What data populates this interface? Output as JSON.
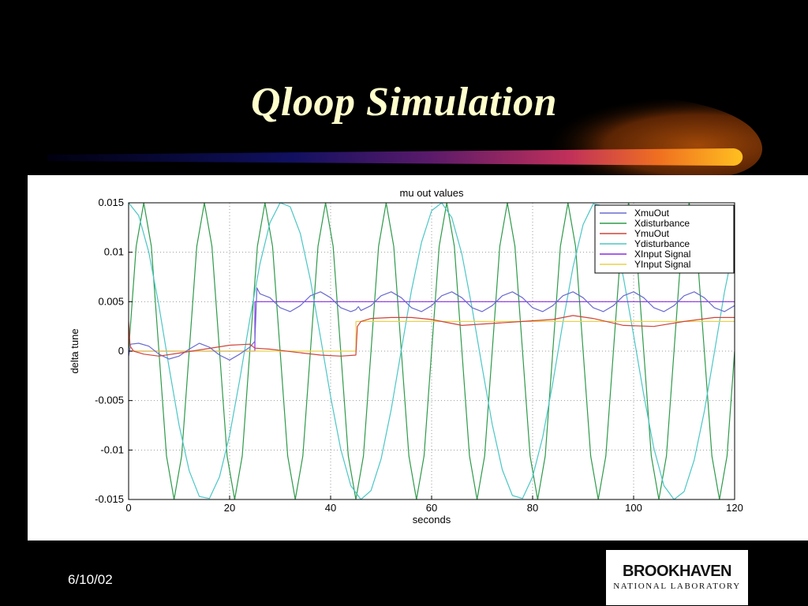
{
  "slide": {
    "title": "Qloop Simulation",
    "date": "6/10/02",
    "logo": {
      "main": "BROOKHAVEN",
      "sub": "NATIONAL LABORATORY"
    }
  },
  "chart_data": {
    "type": "line",
    "title": "mu out values",
    "xlabel": "seconds",
    "ylabel": "delta tune",
    "xlim": [
      0,
      120
    ],
    "ylim": [
      -0.015,
      0.015
    ],
    "xticks": [
      0,
      20,
      40,
      60,
      80,
      100,
      120
    ],
    "yticks": [
      -0.015,
      -0.01,
      -0.005,
      0,
      0.005,
      0.01,
      0.015
    ],
    "ytick_labels": [
      "-0.015",
      "-0.01",
      "-0.005",
      "0",
      "0.005",
      "0.01",
      "0.015"
    ],
    "grid": true,
    "legend_position": "top-right",
    "series": [
      {
        "name": "XmuOut",
        "color": "#6a6ad0",
        "x": [
          0,
          0.4,
          2,
          4,
          6,
          8,
          10,
          12,
          14,
          16,
          18,
          20,
          22,
          24,
          25,
          25.4,
          26,
          28,
          30,
          32,
          34,
          36,
          38,
          40,
          42,
          44,
          45,
          45.5,
          46,
          48,
          50,
          52,
          54,
          56,
          58,
          60,
          62,
          64,
          66,
          68,
          70,
          72,
          74,
          76,
          78,
          80,
          82,
          84,
          86,
          88,
          90,
          92,
          94,
          96,
          98,
          100,
          102,
          104,
          106,
          108,
          110,
          112,
          114,
          116,
          118,
          120
        ],
        "y": [
          -0.0005,
          0.0007,
          0.0008,
          0.0005,
          -0.0003,
          -0.0008,
          -0.0005,
          0.0002,
          0.0008,
          0.0004,
          -0.0004,
          -0.0009,
          -0.0003,
          0.0004,
          0.001,
          0.0064,
          0.0058,
          0.0054,
          0.0044,
          0.004,
          0.0046,
          0.0056,
          0.006,
          0.0054,
          0.0044,
          0.004,
          0.0042,
          0.0045,
          0.0041,
          0.0046,
          0.0056,
          0.006,
          0.0054,
          0.0044,
          0.004,
          0.0046,
          0.0056,
          0.006,
          0.0054,
          0.0044,
          0.004,
          0.0046,
          0.0056,
          0.006,
          0.0054,
          0.0044,
          0.004,
          0.0046,
          0.0056,
          0.006,
          0.0054,
          0.0044,
          0.004,
          0.0046,
          0.0056,
          0.006,
          0.0054,
          0.0044,
          0.004,
          0.0046,
          0.0056,
          0.006,
          0.0054,
          0.0044,
          0.004,
          0.0046
        ]
      },
      {
        "name": "Xdisturbance",
        "color": "#2e9a4a",
        "x": [
          0,
          1.5,
          3,
          4.5,
          6,
          7.5,
          9,
          10.5,
          12,
          13.5,
          15,
          16.5,
          18,
          19.5,
          21,
          22.5,
          24,
          25.5,
          27,
          28.5,
          30,
          31.5,
          33,
          34.5,
          36,
          37.5,
          39,
          40.5,
          42,
          43.5,
          45,
          46.5,
          48,
          49.5,
          51,
          52.5,
          54,
          55.5,
          57,
          58.5,
          60,
          61.5,
          63,
          64.5,
          66,
          67.5,
          69,
          70.5,
          72,
          73.5,
          75,
          76.5,
          78,
          79.5,
          81,
          82.5,
          84,
          85.5,
          87,
          88.5,
          90,
          91.5,
          93,
          94.5,
          96,
          97.5,
          99,
          100.5,
          102,
          103.5,
          105,
          106.5,
          108,
          109.5,
          111,
          112.5,
          114,
          115.5,
          117,
          118.5,
          120
        ],
        "y": [
          0,
          0.0106,
          0.015,
          0.0106,
          0,
          -0.0106,
          -0.015,
          -0.0106,
          0,
          0.0106,
          0.015,
          0.0106,
          0,
          -0.0106,
          -0.015,
          -0.0106,
          0,
          0.0106,
          0.015,
          0.0106,
          0,
          -0.0106,
          -0.015,
          -0.0106,
          0,
          0.0106,
          0.015,
          0.0106,
          0,
          -0.0106,
          -0.015,
          -0.0106,
          0,
          0.0106,
          0.015,
          0.0106,
          0,
          -0.0106,
          -0.015,
          -0.0106,
          0,
          0.0106,
          0.015,
          0.0106,
          0,
          -0.0106,
          -0.015,
          -0.0106,
          0,
          0.0106,
          0.015,
          0.0106,
          0,
          -0.0106,
          -0.015,
          -0.0106,
          0,
          0.0106,
          0.015,
          0.0106,
          0,
          -0.0106,
          -0.015,
          -0.0106,
          0,
          0.0106,
          0.015,
          0.0106,
          0,
          -0.0106,
          -0.015,
          -0.0106,
          0,
          0.0106,
          0.015,
          0.0106,
          0,
          -0.0106,
          -0.015,
          -0.0106,
          0
        ]
      },
      {
        "name": "YmuOut",
        "color": "#d0443a",
        "x": [
          0,
          0.3,
          1,
          3,
          6,
          10,
          15,
          20,
          24,
          25,
          28,
          33,
          38,
          42,
          45,
          45.3,
          46,
          48,
          52,
          56,
          60,
          66,
          72,
          78,
          84,
          88,
          92,
          98,
          104,
          110,
          116,
          120
        ],
        "y": [
          0.003,
          0.0005,
          0,
          -0.0003,
          -0.0005,
          -0.0002,
          0.0002,
          0.0006,
          0.0007,
          0.0003,
          0.0002,
          -0.0001,
          -0.0004,
          -0.0005,
          -0.0004,
          0.0025,
          0.003,
          0.0033,
          0.0034,
          0.0034,
          0.0032,
          0.0026,
          0.0028,
          0.003,
          0.0032,
          0.0036,
          0.0033,
          0.0026,
          0.0025,
          0.003,
          0.0034,
          0.0034
        ]
      },
      {
        "name": "Ydisturbance",
        "color": "#4cc6c6",
        "x": [
          0,
          2,
          4,
          6,
          8,
          10,
          12,
          14,
          16,
          18,
          20,
          22,
          24,
          26,
          28,
          30,
          32,
          34,
          36,
          38,
          40,
          42,
          44,
          46,
          48,
          50,
          52,
          54,
          56,
          58,
          60,
          62,
          64,
          66,
          68,
          70,
          72,
          74,
          76,
          78,
          80,
          82,
          84,
          86,
          88,
          90,
          92,
          94,
          96,
          98,
          100,
          102,
          104,
          106,
          108,
          110,
          112,
          114,
          116,
          118,
          120
        ],
        "y": [
          0.015,
          0.0137,
          0.01,
          0.0046,
          -0.0016,
          -0.0075,
          -0.0121,
          -0.0147,
          -0.0149,
          -0.0127,
          -0.0085,
          -0.0029,
          0.0032,
          0.0088,
          0.013,
          0.015,
          0.0146,
          0.0119,
          0.0072,
          0.0014,
          -0.0046,
          -0.0099,
          -0.0136,
          -0.015,
          -0.0141,
          -0.0109,
          -0.0059,
          0.0001,
          0.0061,
          0.011,
          0.0142,
          0.015,
          0.0135,
          0.0098,
          0.0044,
          -0.0016,
          -0.0074,
          -0.012,
          -0.0146,
          -0.0149,
          -0.0127,
          -0.0087,
          -0.0032,
          0.0029,
          0.0085,
          0.0128,
          0.0149,
          0.0147,
          0.0121,
          0.0074,
          0.0016,
          -0.0044,
          -0.0098,
          -0.0136,
          -0.015,
          -0.0142,
          -0.011,
          -0.0061,
          -0.0001,
          0.006,
          0.011
        ]
      },
      {
        "name": "XInput Signal",
        "color": "#8a2be2",
        "x": [
          0,
          25,
          25.01,
          120
        ],
        "y": [
          0,
          0,
          0.005,
          0.005
        ]
      },
      {
        "name": "YInput Signal",
        "color": "#e8d24a",
        "x": [
          0,
          45,
          45.01,
          120
        ],
        "y": [
          0,
          0,
          0.003,
          0.003
        ]
      }
    ]
  }
}
